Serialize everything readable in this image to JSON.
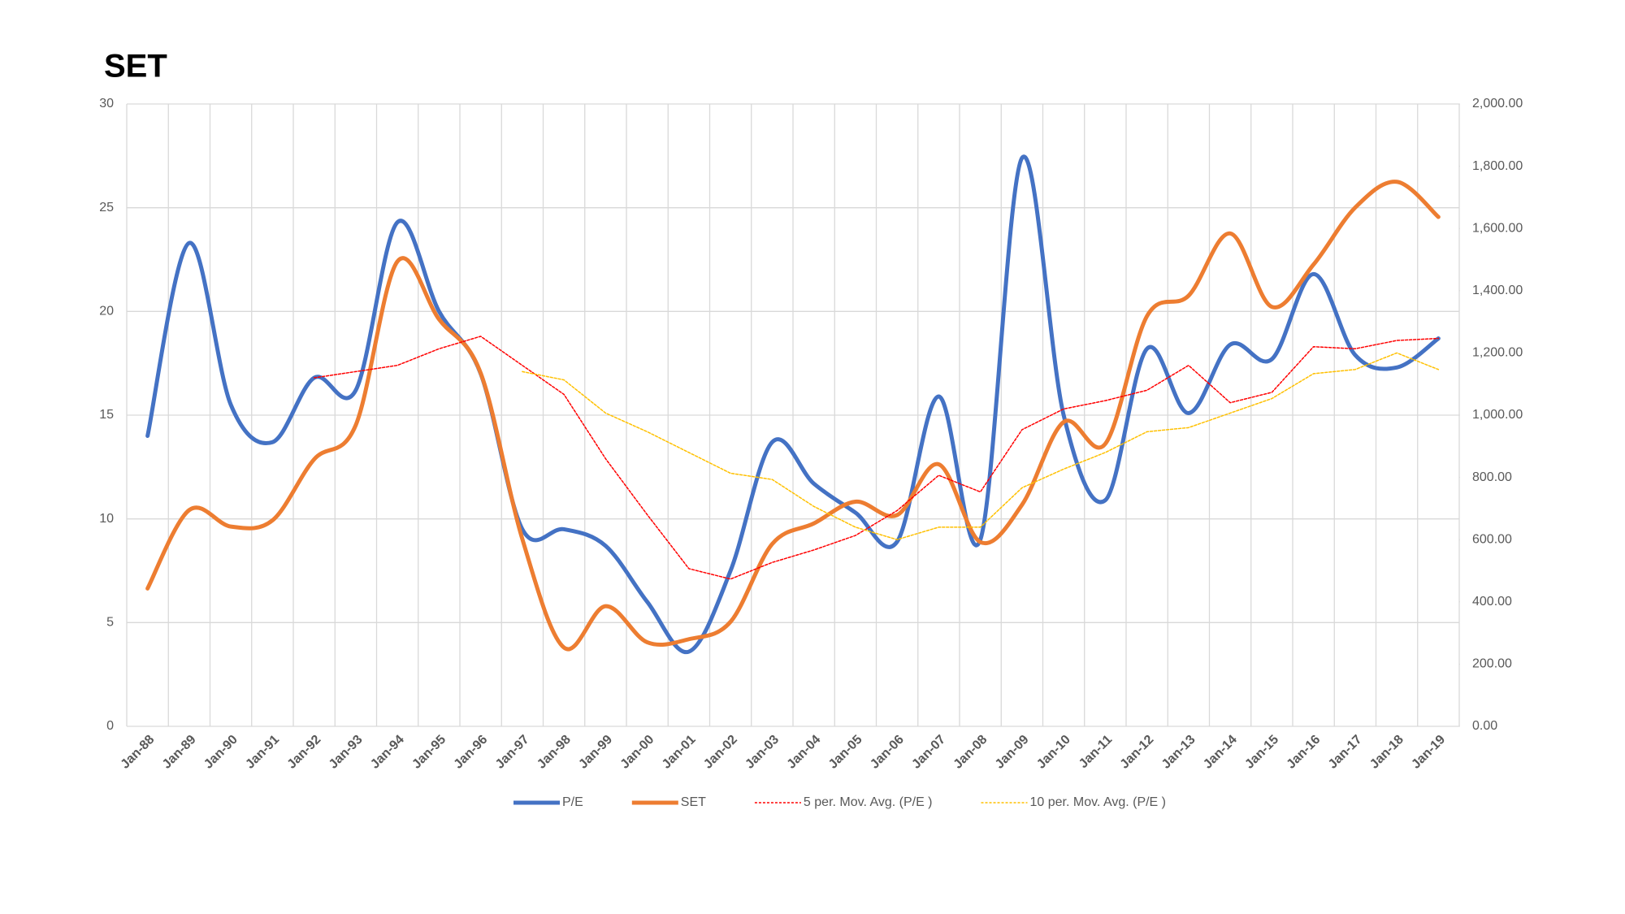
{
  "chart_data": {
    "type": "line",
    "title": "SET",
    "categories": [
      "Jan-88",
      "Jan-89",
      "Jan-90",
      "Jan-91",
      "Jan-92",
      "Jan-93",
      "Jan-94",
      "Jan-95",
      "Jan-96",
      "Jan-97",
      "Jan-98",
      "Jan-99",
      "Jan-00",
      "Jan-01",
      "Jan-02",
      "Jan-03",
      "Jan-04",
      "Jan-05",
      "Jan-06",
      "Jan-07",
      "Jan-08",
      "Jan-09",
      "Jan-10",
      "Jan-11",
      "Jan-12",
      "Jan-13",
      "Jan-14",
      "Jan-15",
      "Jan-16",
      "Jan-17",
      "Jan-18",
      "Jan-19"
    ],
    "series": [
      {
        "name": "P/E",
        "color": "#4472c4",
        "smooth": true,
        "dashed": false,
        "values": [
          14.0,
          23.3,
          15.5,
          13.7,
          16.8,
          16.2,
          24.3,
          20.0,
          17.0,
          9.5,
          9.5,
          8.7,
          6.0,
          3.6,
          7.5,
          13.7,
          11.7,
          10.3,
          8.9,
          15.9,
          9.0,
          27.4,
          15.0,
          10.9,
          18.2,
          15.1,
          18.4,
          17.7,
          21.8,
          17.9,
          17.3,
          18.7
        ]
      },
      {
        "name": "SET",
        "color": "#ed7d31",
        "axis": "y2",
        "smooth": true,
        "dashed": false,
        "values": [
          443,
          695,
          642,
          662,
          858,
          968,
          1494,
          1308,
          1135,
          602,
          253,
          386,
          270,
          280,
          336,
          586,
          652,
          722,
          679,
          842,
          592,
          712,
          978,
          908,
          1318,
          1384,
          1584,
          1348,
          1484,
          1667,
          1750,
          1637
        ]
      },
      {
        "name": "5 per. Mov. Avg. (P/E )",
        "color": "#ff0000",
        "smooth": false,
        "dashed": true,
        "values": [
          null,
          null,
          null,
          null,
          16.8,
          17.1,
          17.4,
          18.2,
          18.8,
          17.4,
          16.0,
          12.9,
          10.2,
          7.6,
          7.1,
          7.9,
          8.5,
          9.2,
          10.4,
          12.1,
          11.3,
          14.3,
          15.3,
          15.7,
          16.2,
          17.4,
          15.6,
          16.1,
          18.3,
          18.2,
          18.6,
          18.7
        ]
      },
      {
        "name": "10 per. Mov. Avg. (P/E )",
        "color": "#ffc000",
        "smooth": false,
        "dashed": true,
        "values": [
          null,
          null,
          null,
          null,
          null,
          null,
          null,
          null,
          null,
          17.1,
          16.7,
          15.1,
          14.2,
          13.2,
          12.2,
          11.9,
          10.6,
          9.6,
          9.0,
          9.6,
          9.6,
          11.5,
          12.4,
          13.2,
          14.2,
          14.4,
          15.1,
          15.8,
          17.0,
          17.2,
          18.0,
          17.2
        ]
      }
    ],
    "ylim": [
      0,
      30
    ],
    "yticks": [
      0,
      5,
      10,
      15,
      20,
      25,
      30
    ],
    "y2lim": [
      0,
      2000
    ],
    "y2ticks": [
      {
        "value": 0,
        "label": "0.00"
      },
      {
        "value": 200,
        "label": "200.00"
      },
      {
        "value": 400,
        "label": "400.00"
      },
      {
        "value": 600,
        "label": "600.00"
      },
      {
        "value": 800,
        "label": "800.00"
      },
      {
        "value": 1000,
        "label": "1,000.00"
      },
      {
        "value": 1200,
        "label": "1,200.00"
      },
      {
        "value": 1400,
        "label": "1,400.00"
      },
      {
        "value": 1600,
        "label": "1,600.00"
      },
      {
        "value": 1800,
        "label": "1,800.00"
      },
      {
        "value": 2000,
        "label": "2,000.00"
      }
    ],
    "grid": true,
    "legend": "bottom"
  }
}
